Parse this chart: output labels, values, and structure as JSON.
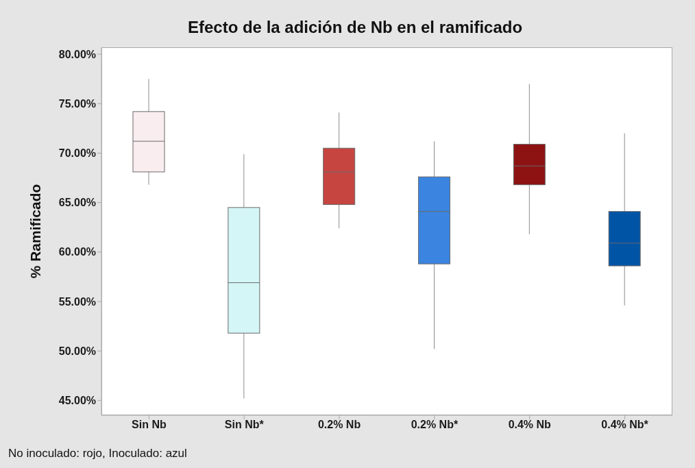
{
  "chart_data": {
    "type": "box",
    "title": "Efecto de la adición de Nb en el ramificado",
    "ylabel": "% Ramificado",
    "categories": [
      "Sin Nb",
      "Sin Nb*",
      "0.2% Nb",
      "0.2% Nb*",
      "0.4% Nb",
      "0.4% Nb*"
    ],
    "boxes": [
      {
        "low": 66.8,
        "q1": 68.1,
        "median": 71.2,
        "q3": 74.2,
        "high": 77.5
      },
      {
        "low": 45.2,
        "q1": 51.8,
        "median": 56.9,
        "q3": 64.5,
        "high": 69.9
      },
      {
        "low": 62.4,
        "q1": 64.8,
        "median": 68.1,
        "q3": 70.5,
        "high": 74.1
      },
      {
        "low": 50.2,
        "q1": 58.8,
        "median": 64.1,
        "q3": 67.6,
        "high": 71.2
      },
      {
        "low": 61.8,
        "q1": 66.8,
        "median": 68.7,
        "q3": 70.9,
        "high": 77.0
      },
      {
        "low": 54.6,
        "q1": 58.6,
        "median": 60.9,
        "q3": 64.1,
        "high": 72.0
      }
    ],
    "colors": [
      "#f9edef",
      "#d5f6f6",
      "#c64541",
      "#3b84e0",
      "#8d1313",
      "#0054a6"
    ],
    "ylim": [
      43.5,
      80.7
    ],
    "yticks": [
      {
        "value": 45,
        "label": "45.00%"
      },
      {
        "value": 50,
        "label": "50.00%"
      },
      {
        "value": 55,
        "label": "55.00%"
      },
      {
        "value": 60,
        "label": "60.00%"
      },
      {
        "value": 65,
        "label": "65.00%"
      },
      {
        "value": 70,
        "label": "70.00%"
      },
      {
        "value": 75,
        "label": "75.00%"
      },
      {
        "value": 80,
        "label": "80.00%"
      }
    ],
    "annotations": [
      "No inoculado: rojo, Inoculado: azul"
    ]
  }
}
